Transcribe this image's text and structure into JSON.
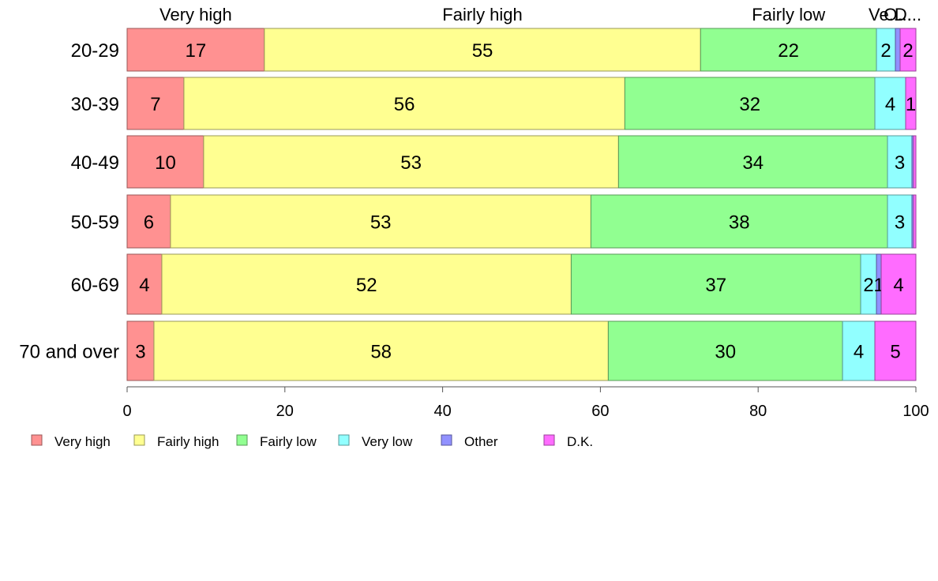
{
  "chart_data": {
    "type": "bar",
    "orientation": "horizontal",
    "stacked": true,
    "title": "",
    "xlabel": "",
    "ylabel": "",
    "xlim": [
      0,
      100
    ],
    "x_ticks": [
      "0",
      "20",
      "40",
      "60",
      "80",
      "100"
    ],
    "categories": [
      "20-29",
      "30-39",
      "40-49",
      "50-59",
      "60-69",
      "70 and over"
    ],
    "series": [
      {
        "name": "Very high",
        "color": "#ff9191",
        "values": [
          17.4,
          7.2,
          9.7,
          5.5,
          4.4,
          3.4
        ]
      },
      {
        "name": "Fairly high",
        "color": "#ffff91",
        "values": [
          55.3,
          55.9,
          52.6,
          53.3,
          51.9,
          57.6
        ]
      },
      {
        "name": "Fairly low",
        "color": "#91ff91",
        "values": [
          22.3,
          31.7,
          34.1,
          37.6,
          36.7,
          29.7
        ]
      },
      {
        "name": "Very low",
        "color": "#91ffff",
        "values": [
          2.4,
          3.9,
          3.1,
          3.1,
          2.0,
          4.1
        ]
      },
      {
        "name": "Other",
        "color": "#9191ff",
        "values": [
          0.6,
          0.0,
          0.2,
          0.2,
          0.6,
          0.0
        ]
      },
      {
        "name": "D.K.",
        "color": "#ff6cff",
        "values": [
          2.0,
          1.3,
          0.3,
          0.3,
          4.4,
          5.2
        ]
      }
    ],
    "data_labels": [
      [
        "17",
        "55",
        "22",
        "2",
        "",
        "2"
      ],
      [
        "7",
        "56",
        "32",
        "4",
        "",
        "1"
      ],
      [
        "10",
        "53",
        "34",
        "3",
        "",
        ""
      ],
      [
        "6",
        "53",
        "38",
        "3",
        "",
        ""
      ],
      [
        "4",
        "52",
        "37",
        "2",
        "1",
        "4"
      ],
      [
        "3",
        "58",
        "30",
        "4",
        "",
        "5"
      ]
    ],
    "top_labels": [
      "Very high",
      "Fairly high",
      "Fairly low",
      "Ve...",
      "O...",
      "D..."
    ],
    "legend": {
      "position": "bottom-left",
      "items": [
        "Very high",
        "Fairly high",
        "Fairly low",
        "Very low",
        "Other",
        "D.K."
      ]
    },
    "grid": false
  }
}
